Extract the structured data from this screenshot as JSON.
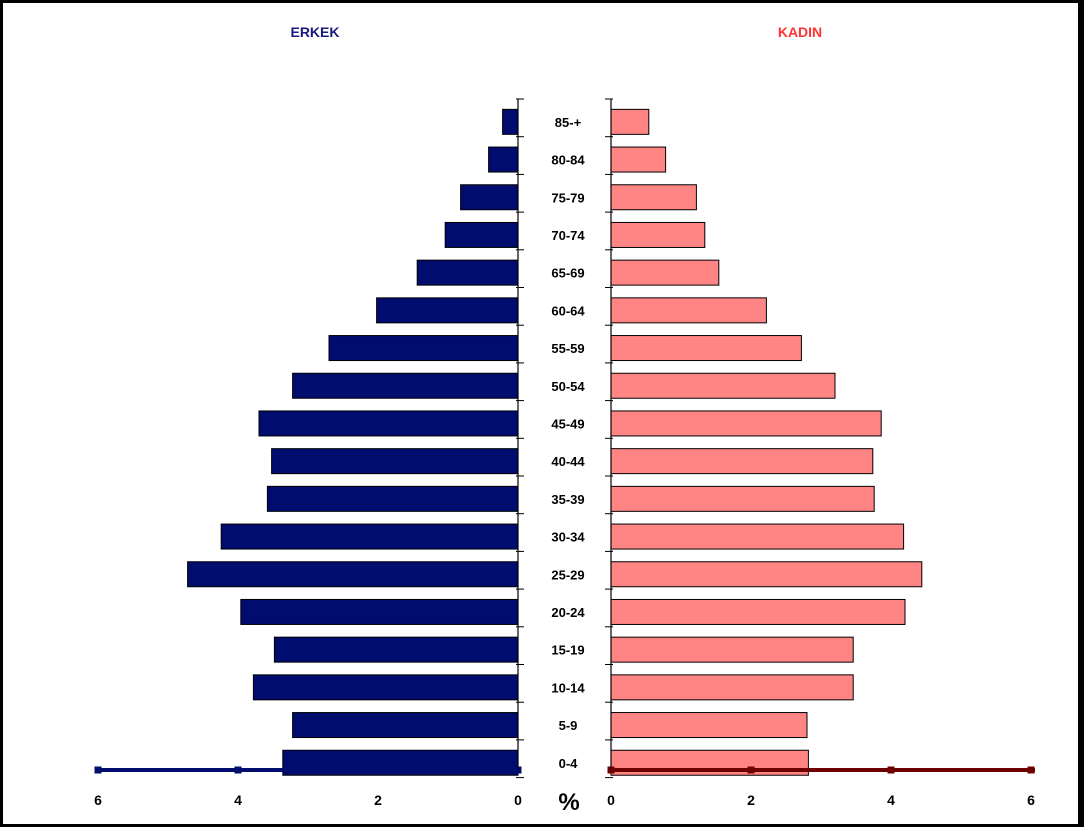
{
  "chart_data": {
    "type": "bar",
    "title_left": "ERKEK",
    "title_right": "KADIN",
    "unit_label": "%",
    "categories": [
      "0-4",
      "5-9",
      "10-14",
      "15-19",
      "20-24",
      "25-29",
      "30-34",
      "35-39",
      "40-44",
      "45-49",
      "50-54",
      "55-59",
      "60-64",
      "65-69",
      "70-74",
      "75-79",
      "80-84",
      "85-+"
    ],
    "series": [
      {
        "name": "ERKEK",
        "color": "#000c6e",
        "values": [
          3.36,
          3.22,
          3.78,
          3.48,
          3.96,
          4.72,
          4.24,
          3.58,
          3.52,
          3.7,
          3.22,
          2.7,
          2.02,
          1.44,
          1.04,
          0.82,
          0.42,
          0.22
        ]
      },
      {
        "name": "KADIN",
        "color": "#ff8585",
        "values": [
          2.82,
          2.8,
          3.46,
          3.46,
          4.2,
          4.44,
          4.18,
          3.76,
          3.74,
          3.86,
          3.2,
          2.72,
          2.22,
          1.54,
          1.34,
          1.22,
          0.78,
          0.54
        ]
      }
    ],
    "left_axis": {
      "ticks": [
        6,
        4,
        2,
        0
      ],
      "range": [
        0,
        6
      ],
      "color": "#000c6e"
    },
    "right_axis": {
      "ticks": [
        0,
        2,
        4,
        6
      ],
      "range": [
        0,
        6
      ],
      "color": "#6e0000"
    }
  }
}
